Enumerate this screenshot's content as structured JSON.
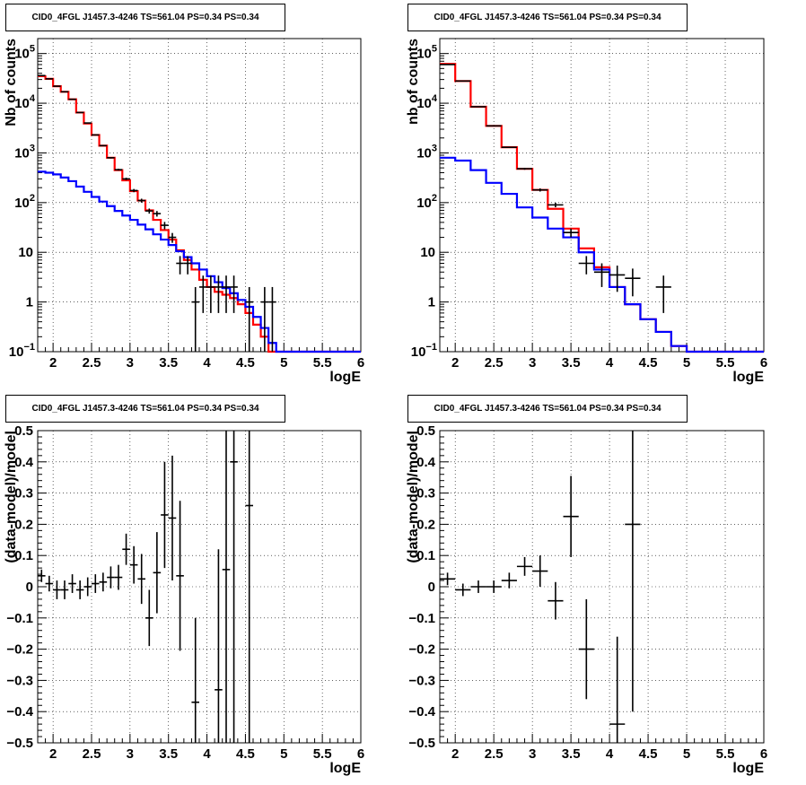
{
  "chart_data": [
    {
      "type": "line",
      "title": "CID0_4FGL J1457.3-4246 TS=561.04 PS=0.34 PS=0.34",
      "xlabel": "logE",
      "ylabel": "Nb of counts",
      "xlim": [
        1.8,
        6.0
      ],
      "ylim": [
        0.1,
        200000
      ],
      "yscale": "log",
      "grid": true,
      "x_ticks": [
        "2",
        "2.5",
        "3",
        "3.5",
        "4",
        "4.5",
        "5",
        "5.5",
        "6"
      ],
      "y_ticks": [
        {
          "value": 0.1,
          "label": "10",
          "sup": "−1"
        },
        {
          "value": 1,
          "label": "1",
          "sup": ""
        },
        {
          "value": 10,
          "label": "10",
          "sup": ""
        },
        {
          "value": 100,
          "label": "10",
          "sup": "2"
        },
        {
          "value": 1000,
          "label": "10",
          "sup": "3"
        },
        {
          "value": 10000,
          "label": "10",
          "sup": "4"
        },
        {
          "value": 100000,
          "label": "10",
          "sup": "5"
        }
      ],
      "bin_edges_start": 1.8,
      "bin_width": 0.1,
      "series": [
        {
          "color": "#ff0000",
          "values": [
            35000,
            31000,
            22000,
            17000,
            12000,
            6500,
            3900,
            2300,
            1400,
            800,
            450,
            280,
            170,
            110,
            70,
            45,
            28,
            18,
            11,
            7,
            4.5,
            2.8,
            2,
            1.6,
            1.4,
            1.2,
            0.9,
            0.6,
            0.35,
            0.2,
            0.1,
            0.1,
            0.1,
            0.1,
            0.1,
            0.1,
            0.1,
            0.1,
            0.1,
            0.1,
            0.1,
            0.1
          ]
        },
        {
          "color": "#0000ff",
          "values": [
            420,
            400,
            370,
            320,
            270,
            210,
            165,
            130,
            105,
            85,
            68,
            55,
            45,
            36,
            29,
            23,
            18,
            14,
            10.5,
            8,
            6,
            4.5,
            3.3,
            2.5,
            1.9,
            1.5,
            1.1,
            0.8,
            0.5,
            0.3,
            0.15,
            0.1,
            0.1,
            0.1,
            0.1,
            0.1,
            0.1,
            0.1,
            0.1,
            0.1,
            0.1,
            0.1
          ]
        }
      ],
      "points": [
        {
          "x": 1.85,
          "y": 36000,
          "err": 190
        },
        {
          "x": 1.95,
          "y": 31000,
          "err": 176
        },
        {
          "x": 2.05,
          "y": 22000,
          "err": 148
        },
        {
          "x": 2.15,
          "y": 17000,
          "err": 130
        },
        {
          "x": 2.25,
          "y": 12000,
          "err": 110
        },
        {
          "x": 2.35,
          "y": 6500,
          "err": 81
        },
        {
          "x": 2.45,
          "y": 4000,
          "err": 63
        },
        {
          "x": 2.55,
          "y": 2300,
          "err": 48
        },
        {
          "x": 2.65,
          "y": 1400,
          "err": 37
        },
        {
          "x": 2.75,
          "y": 800,
          "err": 28
        },
        {
          "x": 2.85,
          "y": 460,
          "err": 21
        },
        {
          "x": 2.95,
          "y": 300,
          "err": 17
        },
        {
          "x": 3.05,
          "y": 175,
          "err": 13
        },
        {
          "x": 3.15,
          "y": 110,
          "err": 10
        },
        {
          "x": 3.25,
          "y": 68,
          "err": 8
        },
        {
          "x": 3.35,
          "y": 60,
          "err": 7.7
        },
        {
          "x": 3.45,
          "y": 35,
          "err": 5.9
        },
        {
          "x": 3.55,
          "y": 20,
          "err": 4.5
        },
        {
          "x": 3.65,
          "y": 6,
          "err": 2.4
        },
        {
          "x": 3.75,
          "y": 6,
          "err": 2.4
        },
        {
          "x": 3.85,
          "y": 1,
          "err": 1
        },
        {
          "x": 3.95,
          "y": 2,
          "err": 1.4
        },
        {
          "x": 4.05,
          "y": 2,
          "err": 1.4
        },
        {
          "x": 4.15,
          "y": 2,
          "err": 1.4
        },
        {
          "x": 4.25,
          "y": 2,
          "err": 1.4
        },
        {
          "x": 4.35,
          "y": 2,
          "err": 1.4
        },
        {
          "x": 4.55,
          "y": 1,
          "err": 1
        },
        {
          "x": 4.75,
          "y": 1,
          "err": 1
        },
        {
          "x": 4.85,
          "y": 1,
          "err": 1
        }
      ]
    },
    {
      "type": "line",
      "title": "CID0_4FGL J1457.3-4246 TS=561.04 PS=0.34 PS=0.34",
      "xlabel": "logE",
      "ylabel": "nb of counts",
      "xlim": [
        1.8,
        6.0
      ],
      "ylim": [
        0.1,
        200000
      ],
      "yscale": "log",
      "grid": true,
      "x_ticks": [
        "2",
        "2.5",
        "3",
        "3.5",
        "4",
        "4.5",
        "5",
        "5.5",
        "6"
      ],
      "y_ticks": [
        {
          "value": 0.1,
          "label": "10",
          "sup": "−1"
        },
        {
          "value": 1,
          "label": "1",
          "sup": ""
        },
        {
          "value": 10,
          "label": "10",
          "sup": ""
        },
        {
          "value": 100,
          "label": "10",
          "sup": "2"
        },
        {
          "value": 1000,
          "label": "10",
          "sup": "3"
        },
        {
          "value": 10000,
          "label": "10",
          "sup": "4"
        },
        {
          "value": 100000,
          "label": "10",
          "sup": "5"
        }
      ],
      "bin_edges_start": 1.8,
      "bin_width": 0.2,
      "series": [
        {
          "color": "#ff0000",
          "values": [
            62000,
            28000,
            8500,
            3500,
            1300,
            480,
            180,
            75,
            30,
            12,
            5,
            2,
            0.9,
            0.45,
            0.25,
            0.13,
            0.1,
            0.1,
            0.1,
            0.1,
            0.1
          ]
        },
        {
          "color": "#0000ff",
          "values": [
            800,
            700,
            450,
            250,
            150,
            80,
            50,
            30,
            20,
            10,
            4.5,
            2,
            0.9,
            0.45,
            0.25,
            0.13,
            0.1,
            0.1,
            0.1,
            0.1,
            0.1
          ]
        }
      ],
      "points": [
        {
          "x": 1.9,
          "y": 60000,
          "err": 245
        },
        {
          "x": 2.1,
          "y": 28000,
          "err": 167
        },
        {
          "x": 2.3,
          "y": 8500,
          "err": 92
        },
        {
          "x": 2.5,
          "y": 3500,
          "err": 59
        },
        {
          "x": 2.7,
          "y": 1300,
          "err": 36
        },
        {
          "x": 2.9,
          "y": 480,
          "err": 22
        },
        {
          "x": 3.1,
          "y": 180,
          "err": 13
        },
        {
          "x": 3.3,
          "y": 90,
          "err": 9.5
        },
        {
          "x": 3.5,
          "y": 25,
          "err": 5
        },
        {
          "x": 3.7,
          "y": 6,
          "err": 2.4
        },
        {
          "x": 3.9,
          "y": 4,
          "err": 2
        },
        {
          "x": 4.1,
          "y": 3.5,
          "err": 1.9
        },
        {
          "x": 4.3,
          "y": 3,
          "err": 1.7
        },
        {
          "x": 4.7,
          "y": 2,
          "err": 1.4
        }
      ]
    },
    {
      "type": "scatter",
      "title": "CID0_4FGL J1457.3-4246 TS=561.04 PS=0.34 PS=0.34",
      "xlabel": "logE",
      "ylabel": "(data-model)/model",
      "xlim": [
        1.8,
        6.0
      ],
      "ylim": [
        -0.5,
        0.5
      ],
      "yscale": "linear",
      "grid": true,
      "x_ticks": [
        "2",
        "2.5",
        "3",
        "3.5",
        "4",
        "4.5",
        "5",
        "5.5",
        "6"
      ],
      "y_ticks": [
        {
          "value": -0.5,
          "label": "−0.5"
        },
        {
          "value": -0.4,
          "label": "−0.4"
        },
        {
          "value": -0.3,
          "label": "−0.3"
        },
        {
          "value": -0.2,
          "label": "−0.2"
        },
        {
          "value": -0.1,
          "label": "−0.1"
        },
        {
          "value": 0,
          "label": "0"
        },
        {
          "value": 0.1,
          "label": "0.1"
        },
        {
          "value": 0.2,
          "label": "0.2"
        },
        {
          "value": 0.3,
          "label": "0.3"
        },
        {
          "value": 0.4,
          "label": "0.4"
        },
        {
          "value": 0.5,
          "label": "0.5"
        }
      ],
      "half_width": 0.05,
      "points": [
        {
          "x": 1.85,
          "y": 0.035,
          "err": 0.02
        },
        {
          "x": 1.95,
          "y": 0.01,
          "err": 0.025
        },
        {
          "x": 2.05,
          "y": -0.01,
          "err": 0.03
        },
        {
          "x": 2.15,
          "y": -0.01,
          "err": 0.03
        },
        {
          "x": 2.25,
          "y": 0.01,
          "err": 0.03
        },
        {
          "x": 2.35,
          "y": -0.01,
          "err": 0.03
        },
        {
          "x": 2.45,
          "y": 0.0,
          "err": 0.03
        },
        {
          "x": 2.55,
          "y": 0.01,
          "err": 0.03
        },
        {
          "x": 2.65,
          "y": 0.015,
          "err": 0.03
        },
        {
          "x": 2.75,
          "y": 0.03,
          "err": 0.035
        },
        {
          "x": 2.85,
          "y": 0.03,
          "err": 0.04
        },
        {
          "x": 2.95,
          "y": 0.12,
          "err": 0.05
        },
        {
          "x": 3.05,
          "y": 0.07,
          "err": 0.06
        },
        {
          "x": 3.15,
          "y": 0.025,
          "err": 0.08
        },
        {
          "x": 3.25,
          "y": -0.1,
          "err": 0.09
        },
        {
          "x": 3.35,
          "y": 0.045,
          "err": 0.13
        },
        {
          "x": 3.45,
          "y": 0.23,
          "err": 0.17
        },
        {
          "x": 3.55,
          "y": 0.22,
          "err": 0.2
        },
        {
          "x": 3.65,
          "y": 0.035,
          "err": 0.24
        },
        {
          "x": 3.85,
          "y": -0.37,
          "err": 0.27
        },
        {
          "x": 4.15,
          "y": -0.33,
          "err": 0.45
        },
        {
          "x": 4.25,
          "y": 0.055,
          "err": 0.7
        },
        {
          "x": 4.35,
          "y": 0.4,
          "err": 1.0
        },
        {
          "x": 4.55,
          "y": 0.26,
          "err": 1.0
        }
      ]
    },
    {
      "type": "scatter",
      "title": "CID0_4FGL J1457.3-4246 TS=561.04 PS=0.34 PS=0.34",
      "xlabel": "logE",
      "ylabel": "(data-model)/model",
      "xlim": [
        1.8,
        6.0
      ],
      "ylim": [
        -0.5,
        0.5
      ],
      "yscale": "linear",
      "grid": true,
      "x_ticks": [
        "2",
        "2.5",
        "3",
        "3.5",
        "4",
        "4.5",
        "5",
        "5.5",
        "6"
      ],
      "y_ticks": [
        {
          "value": -0.5,
          "label": "−0.5"
        },
        {
          "value": -0.4,
          "label": "−0.4"
        },
        {
          "value": -0.3,
          "label": "−0.3"
        },
        {
          "value": -0.2,
          "label": "−0.2"
        },
        {
          "value": -0.1,
          "label": "−0.1"
        },
        {
          "value": 0,
          "label": "0"
        },
        {
          "value": 0.1,
          "label": "0.1"
        },
        {
          "value": 0.2,
          "label": "0.2"
        },
        {
          "value": 0.3,
          "label": "0.3"
        },
        {
          "value": 0.4,
          "label": "0.4"
        },
        {
          "value": 0.5,
          "label": "0.5"
        }
      ],
      "half_width": 0.1,
      "points": [
        {
          "x": 1.9,
          "y": 0.025,
          "err": 0.02
        },
        {
          "x": 2.1,
          "y": -0.01,
          "err": 0.02
        },
        {
          "x": 2.3,
          "y": 0.0,
          "err": 0.02
        },
        {
          "x": 2.5,
          "y": 0.0,
          "err": 0.02
        },
        {
          "x": 2.7,
          "y": 0.02,
          "err": 0.025
        },
        {
          "x": 2.9,
          "y": 0.065,
          "err": 0.03
        },
        {
          "x": 3.1,
          "y": 0.05,
          "err": 0.05
        },
        {
          "x": 3.3,
          "y": -0.045,
          "err": 0.06
        },
        {
          "x": 3.5,
          "y": 0.225,
          "err": 0.13
        },
        {
          "x": 3.7,
          "y": -0.2,
          "err": 0.16
        },
        {
          "x": 4.1,
          "y": -0.44,
          "err": 0.28
        },
        {
          "x": 4.3,
          "y": 0.2,
          "err": 0.6
        }
      ]
    }
  ]
}
